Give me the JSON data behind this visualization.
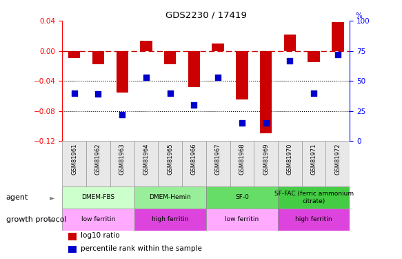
{
  "title": "GDS2230 / 17419",
  "samples": [
    "GSM81961",
    "GSM81962",
    "GSM81963",
    "GSM81964",
    "GSM81965",
    "GSM81966",
    "GSM81967",
    "GSM81968",
    "GSM81969",
    "GSM81970",
    "GSM81971",
    "GSM81972"
  ],
  "log10_ratio": [
    -0.01,
    -0.018,
    -0.055,
    0.013,
    -0.018,
    -0.048,
    0.01,
    -0.065,
    -0.11,
    0.022,
    -0.015,
    0.038
  ],
  "percentile_rank": [
    40,
    39,
    22,
    53,
    40,
    30,
    53,
    15,
    15,
    67,
    40,
    72
  ],
  "ylim_left": [
    -0.12,
    0.04
  ],
  "ylim_right": [
    0,
    100
  ],
  "y_ticks_left": [
    -0.12,
    -0.08,
    -0.04,
    0.0,
    0.04
  ],
  "y_ticks_right": [
    0,
    25,
    50,
    75,
    100
  ],
  "bar_color": "#cc0000",
  "dot_color": "#0000cc",
  "dashed_line_color": "#cc0000",
  "dotted_line_color": "#000000",
  "agent_groups": [
    {
      "label": "DMEM-FBS",
      "start": 0,
      "end": 3,
      "color": "#ccffcc"
    },
    {
      "label": "DMEM-Hemin",
      "start": 3,
      "end": 6,
      "color": "#99ee99"
    },
    {
      "label": "SF-0",
      "start": 6,
      "end": 9,
      "color": "#66dd66"
    },
    {
      "label": "SF-FAC (ferric ammonium\ncitrate)",
      "start": 9,
      "end": 12,
      "color": "#44cc44"
    }
  ],
  "growth_groups": [
    {
      "label": "low ferritin",
      "start": 0,
      "end": 3,
      "color": "#ffaaff"
    },
    {
      "label": "high ferritin",
      "start": 3,
      "end": 6,
      "color": "#dd44dd"
    },
    {
      "label": "low ferritin",
      "start": 6,
      "end": 9,
      "color": "#ffaaff"
    },
    {
      "label": "high ferritin",
      "start": 9,
      "end": 12,
      "color": "#dd44dd"
    }
  ],
  "legend_items": [
    {
      "label": "log10 ratio",
      "color": "#cc0000"
    },
    {
      "label": "percentile rank within the sample",
      "color": "#0000cc"
    }
  ],
  "bar_width": 0.5,
  "dot_size": 40,
  "agent_label": "agent",
  "growth_label": "growth protocol"
}
